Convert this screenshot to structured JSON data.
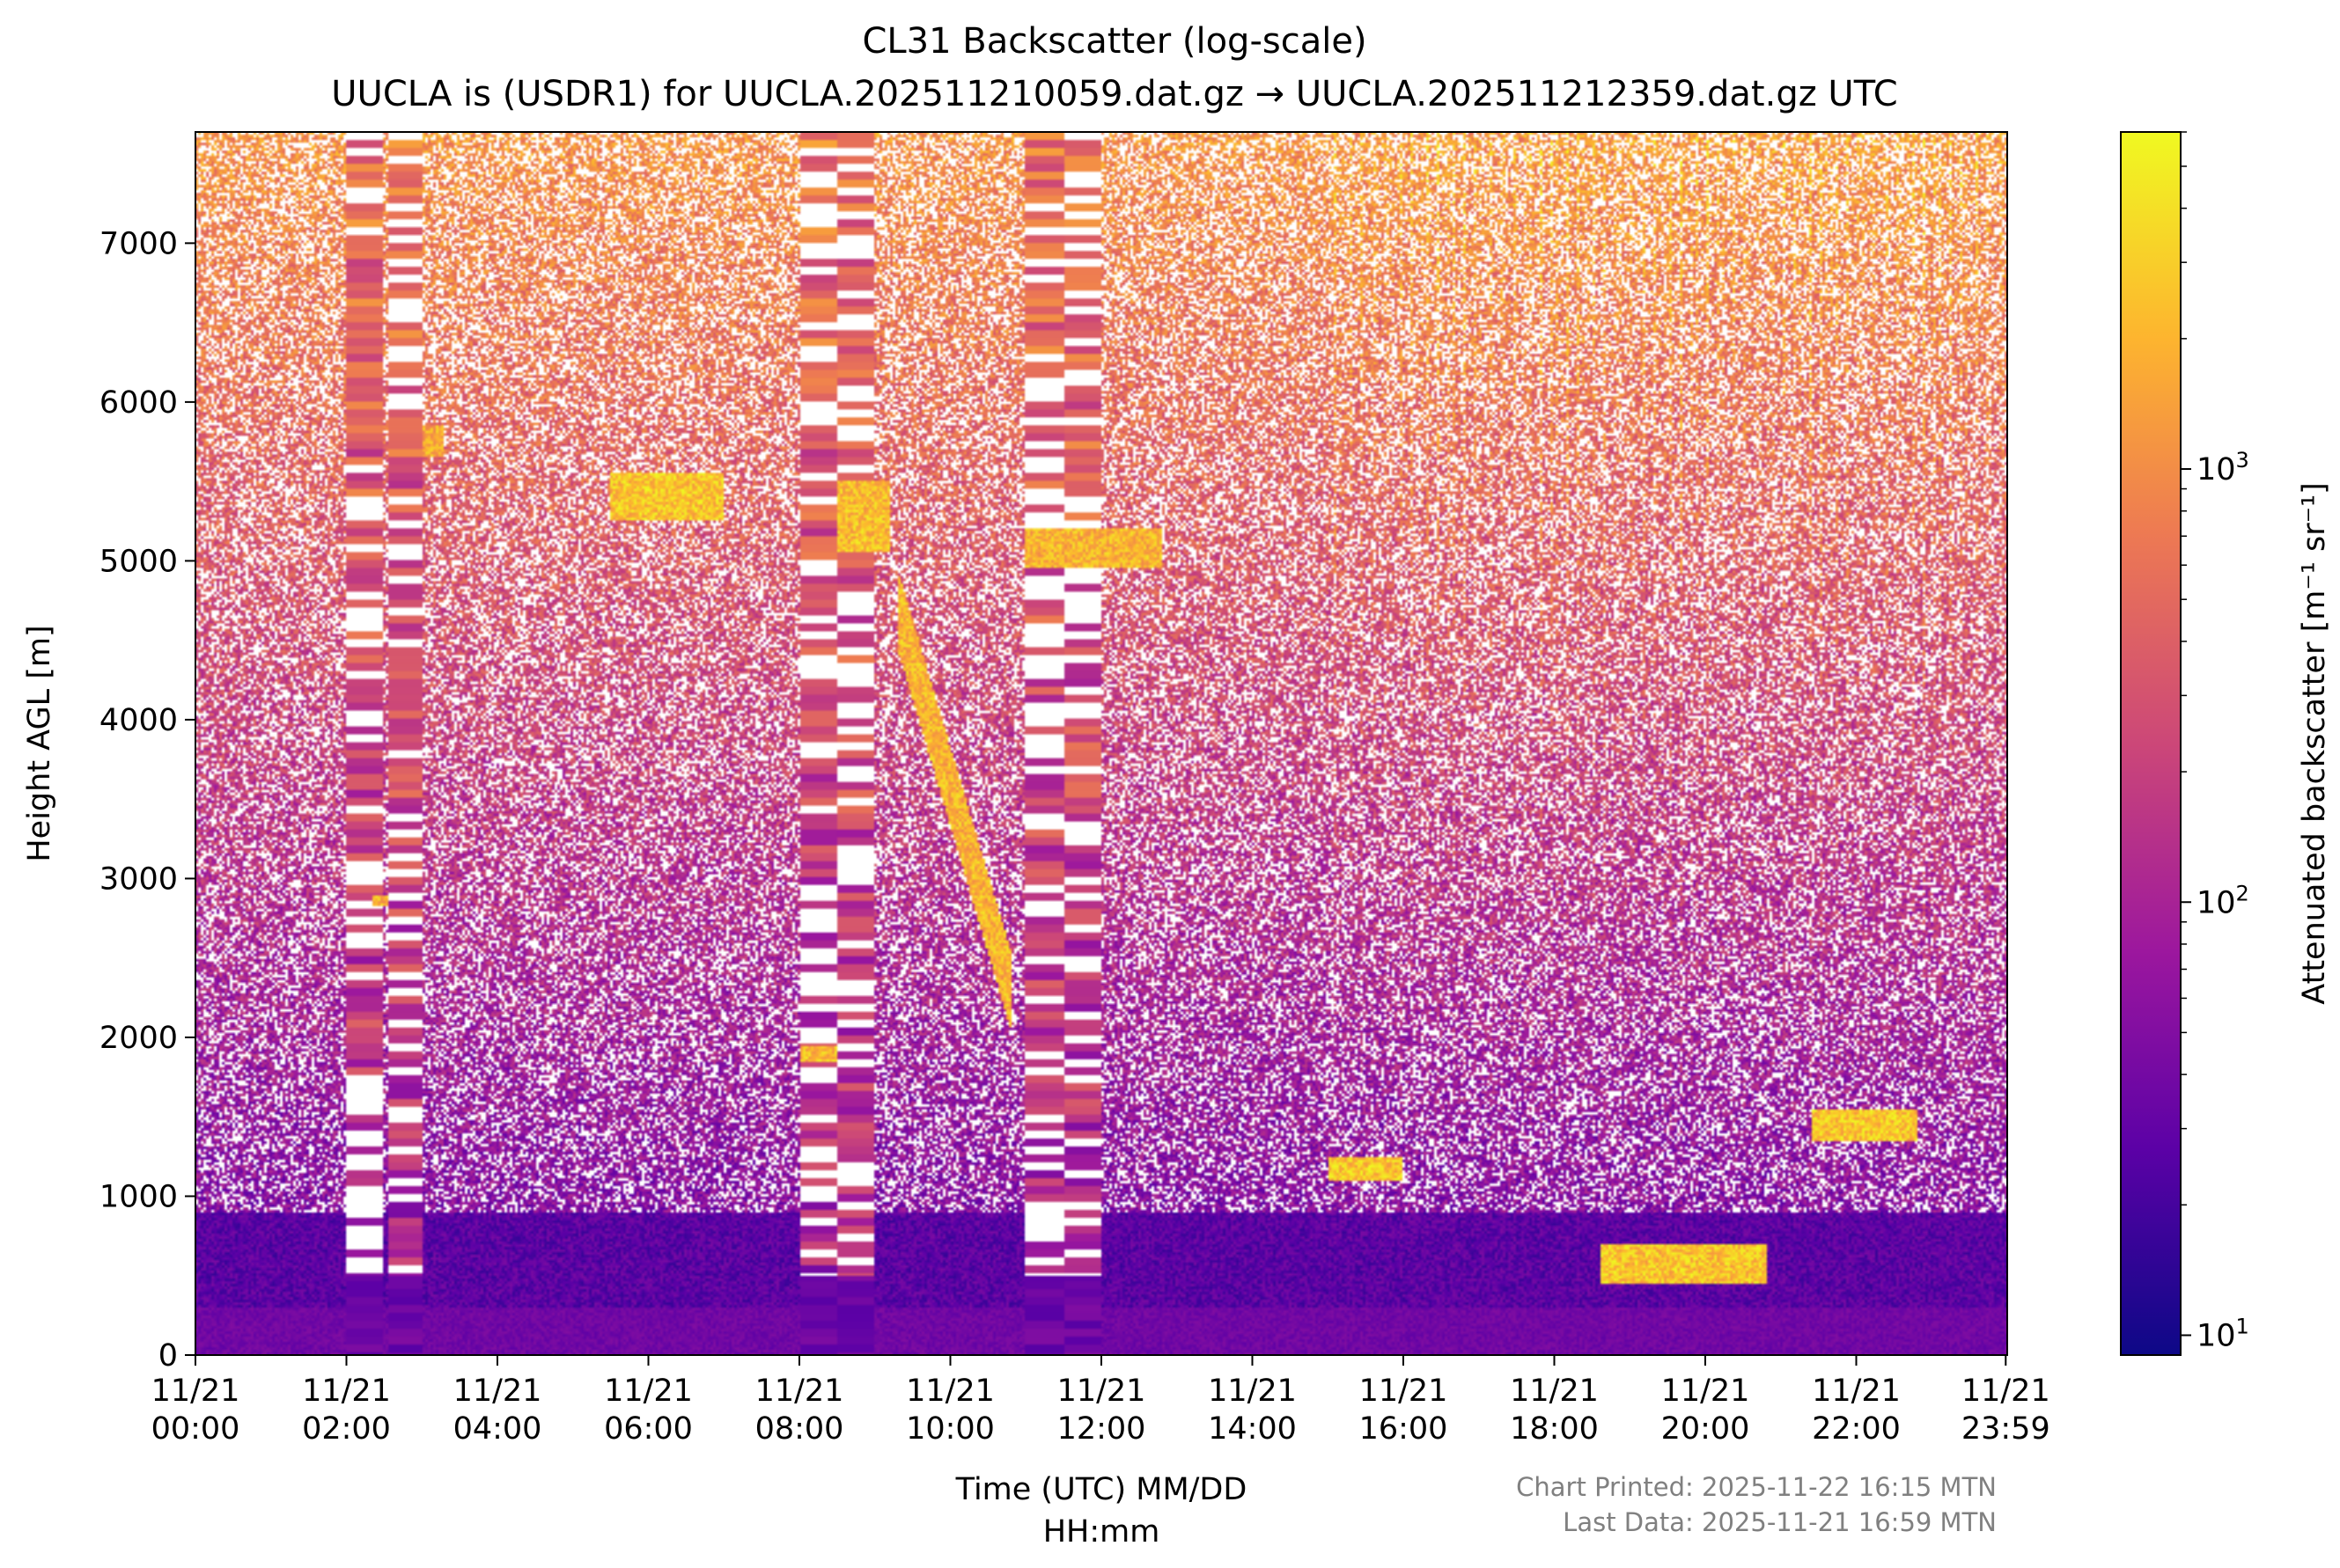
{
  "chart_data": {
    "type": "heatmap",
    "title": "CL31 Backscatter (log-scale)",
    "subtitle": "UUCLA is (USDR1) for UUCLA.202511210059.dat.gz → UUCLA.202511212359.dat.gz UTC",
    "xlabel_line1": "Time (UTC) MM/DD",
    "xlabel_line2": "HH:mm",
    "ylabel": "Height AGL [m]",
    "colorbar_label": "Attenuated backscatter [m⁻¹ sr⁻¹]",
    "colormap": "plasma",
    "colormap_stops": [
      "#0d0887",
      "#5c01a6",
      "#9c179e",
      "#cc4778",
      "#ed7953",
      "#fdb42f",
      "#f0f921"
    ],
    "color_scale": "log",
    "color_range": [
      9,
      6000
    ],
    "colorbar_ticks": [
      {
        "value": 10,
        "base": "10",
        "exp": "1"
      },
      {
        "value": 100,
        "base": "10",
        "exp": "2"
      },
      {
        "value": 1000,
        "base": "10",
        "exp": "3"
      }
    ],
    "x_range_hours": [
      0,
      24
    ],
    "ylim": [
      0,
      7700
    ],
    "y_ticks": [
      0,
      1000,
      2000,
      3000,
      4000,
      5000,
      6000,
      7000
    ],
    "x_ticks": [
      {
        "hour": 0,
        "date": "11/21",
        "time": "00:00"
      },
      {
        "hour": 2,
        "date": "11/21",
        "time": "02:00"
      },
      {
        "hour": 4,
        "date": "11/21",
        "time": "04:00"
      },
      {
        "hour": 6,
        "date": "11/21",
        "time": "06:00"
      },
      {
        "hour": 8,
        "date": "11/21",
        "time": "08:00"
      },
      {
        "hour": 10,
        "date": "11/21",
        "time": "10:00"
      },
      {
        "hour": 12,
        "date": "11/21",
        "time": "12:00"
      },
      {
        "hour": 14,
        "date": "11/21",
        "time": "14:00"
      },
      {
        "hour": 16,
        "date": "11/21",
        "time": "16:00"
      },
      {
        "hour": 18,
        "date": "11/21",
        "time": "18:00"
      },
      {
        "hour": 20,
        "date": "11/21",
        "time": "20:00"
      },
      {
        "hour": 22,
        "date": "11/21",
        "time": "22:00"
      },
      {
        "hour": 23.98,
        "date": "11/21",
        "time": "23:59"
      }
    ],
    "data_gaps_hours": [
      [
        2.0,
        2.5
      ],
      [
        2.55,
        3.0
      ],
      [
        8.0,
        8.5
      ],
      [
        8.5,
        9.0
      ],
      [
        11.0,
        11.5
      ],
      [
        11.5,
        12.0
      ]
    ],
    "cloud_layers": [
      {
        "t": [
          2.35,
          2.55
        ],
        "h": [
          2830,
          2900
        ],
        "value": 3000
      },
      {
        "t": [
          3.0,
          3.3
        ],
        "h": [
          5650,
          5850
        ],
        "value": 2500
      },
      {
        "t": [
          5.5,
          7.0
        ],
        "h": [
          5250,
          5550
        ],
        "value": 4000
      },
      {
        "t": [
          8.0,
          8.5
        ],
        "h": [
          1850,
          1950
        ],
        "value": 3500
      },
      {
        "t": [
          8.5,
          9.2
        ],
        "h": [
          5050,
          5500
        ],
        "value": 3500
      },
      {
        "t": [
          9.3,
          10.8
        ],
        "h": [
          2300,
          4700
        ],
        "value": 3000
      },
      {
        "t": [
          11.0,
          12.8
        ],
        "h": [
          4950,
          5200
        ],
        "value": 3000
      },
      {
        "t": [
          15.0,
          16.0
        ],
        "h": [
          1100,
          1250
        ],
        "value": 4000
      },
      {
        "t": [
          18.6,
          20.8
        ],
        "h": [
          450,
          700
        ],
        "value": 4000
      },
      {
        "t": [
          21.4,
          22.8
        ],
        "h": [
          1350,
          1550
        ],
        "value": 4000
      }
    ],
    "annotations": [
      "Chart Printed: 2025-11-22 16:15 MTN",
      "Last Data: 2025-11-21 16:59 MTN"
    ]
  }
}
